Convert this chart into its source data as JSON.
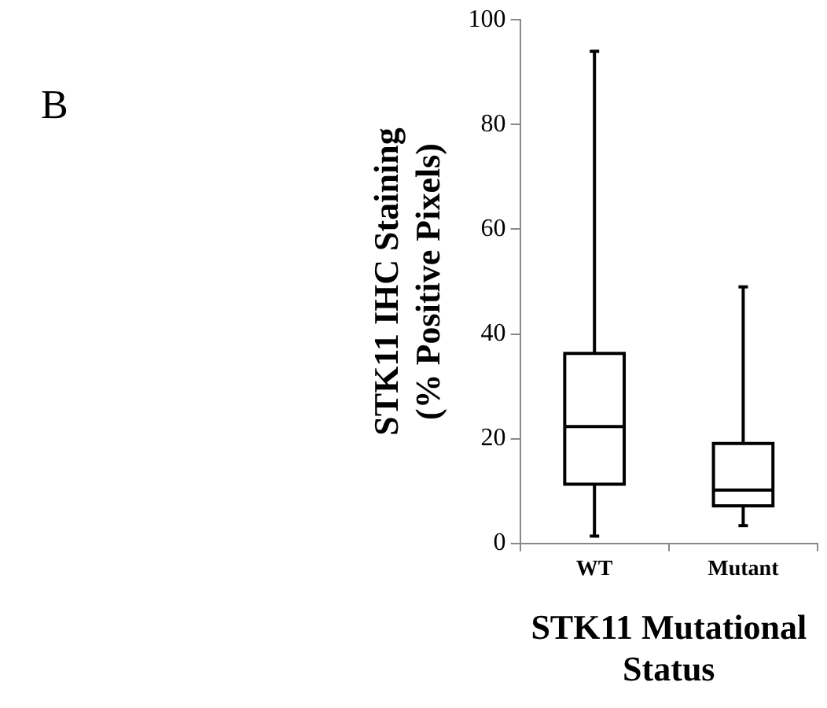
{
  "chart_data": {
    "type": "box",
    "categories": [
      "WT",
      "Mutant"
    ],
    "boxes": [
      {
        "low": 1.4,
        "q1": 11.3,
        "median": 22.3,
        "q3": 36.3,
        "high": 94
      },
      {
        "low": 3.4,
        "q1": 7.2,
        "median": 10.2,
        "q3": 19.1,
        "high": 49
      }
    ],
    "ylim": [
      0,
      100
    ],
    "yticks": [
      0,
      20,
      40,
      60,
      80,
      100
    ],
    "xlabel": "STK11 Mutational Status",
    "ylabel": "STK11 IHC Staining (% Positive Pixels)",
    "annotations": [
      "B"
    ]
  }
}
